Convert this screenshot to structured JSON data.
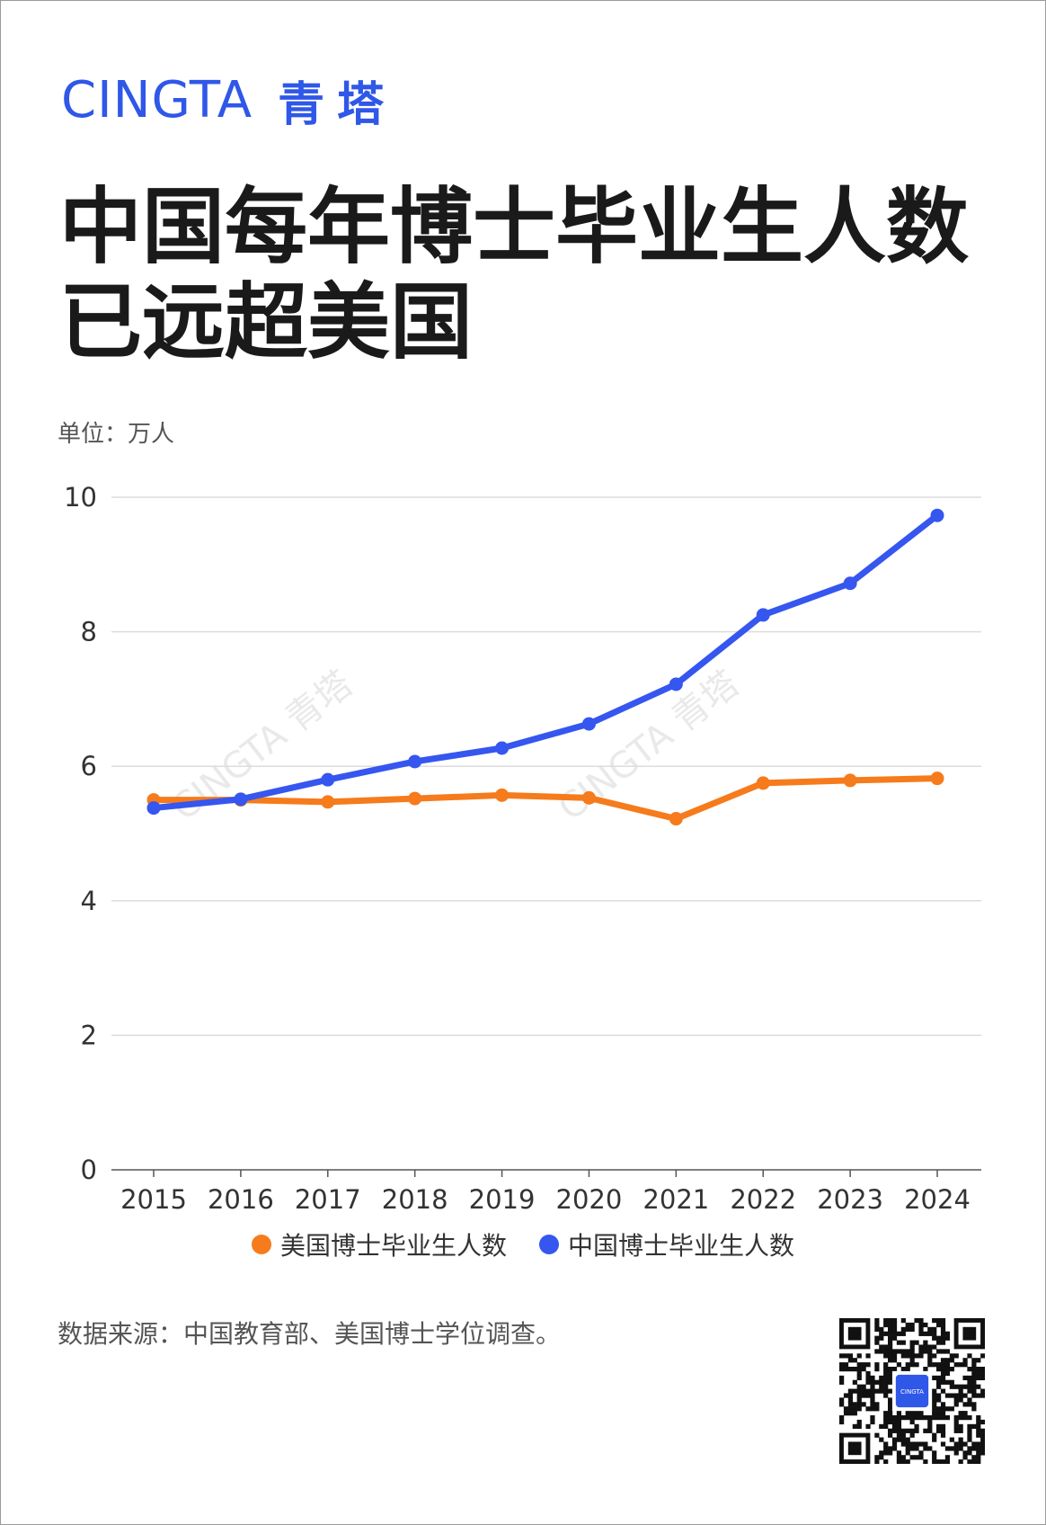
{
  "brand": {
    "en": "CINGTA",
    "zh": "青塔"
  },
  "title_line1": "中国每年博士毕业生人数",
  "title_line2": "已远超美国",
  "unit_label": "单位：万人",
  "source": "数据来源：中国教育部、美国博士学位调查。",
  "colors": {
    "brand": "#2f57e8",
    "us": "#f67b1c",
    "cn": "#3556ef",
    "grid": "#dcdcdc"
  },
  "qr_center_text": "CINGTA",
  "chart_data": {
    "type": "line",
    "x": [
      "2015",
      "2016",
      "2017",
      "2018",
      "2019",
      "2020",
      "2021",
      "2022",
      "2023",
      "2024"
    ],
    "ylim": [
      0,
      10
    ],
    "yticks": [
      "0",
      "2",
      "4",
      "6",
      "8",
      "10"
    ],
    "grid": true,
    "legend_position": "bottom",
    "series": [
      {
        "name": "美国博士毕业生人数",
        "color": "#f67b1c",
        "values": [
          5.5,
          5.5,
          5.47,
          5.52,
          5.57,
          5.53,
          5.22,
          5.75,
          5.79,
          5.82
        ]
      },
      {
        "name": "中国博士毕业生人数",
        "color": "#3556ef",
        "values": [
          5.38,
          5.51,
          5.8,
          6.07,
          6.27,
          6.63,
          7.22,
          8.25,
          8.72,
          9.73
        ]
      }
    ]
  }
}
